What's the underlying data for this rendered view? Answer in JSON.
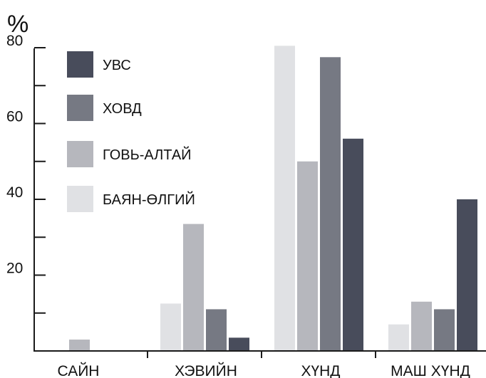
{
  "chart_data": {
    "type": "bar",
    "ylabel": "%",
    "ylim": [
      0,
      80
    ],
    "yticks": [
      20,
      40,
      60,
      80
    ],
    "categories": [
      "САЙН",
      "ХЭВИЙН",
      "ХҮНД",
      "МАШ ХҮНД"
    ],
    "series": [
      {
        "name": "БАЯН-ӨЛГИЙ",
        "color": "#e0e1e4",
        "values": [
          0,
          12.5,
          80.5,
          7
        ]
      },
      {
        "name": "ГОВЬ-АЛТАЙ",
        "color": "#b6b7bd",
        "values": [
          3,
          33.5,
          50,
          13
        ]
      },
      {
        "name": "ХОВД",
        "color": "#767983",
        "values": [
          0,
          11,
          77.5,
          11
        ]
      },
      {
        "name": "УВС",
        "color": "#484c5b",
        "values": [
          0,
          3.5,
          56,
          40
        ]
      }
    ],
    "legend_placement": "top-left",
    "legend_order": [
      "УВС",
      "ХОВД",
      "ГОВЬ-АЛТАЙ",
      "БАЯН-ӨЛГИЙ"
    ],
    "grid": false
  }
}
